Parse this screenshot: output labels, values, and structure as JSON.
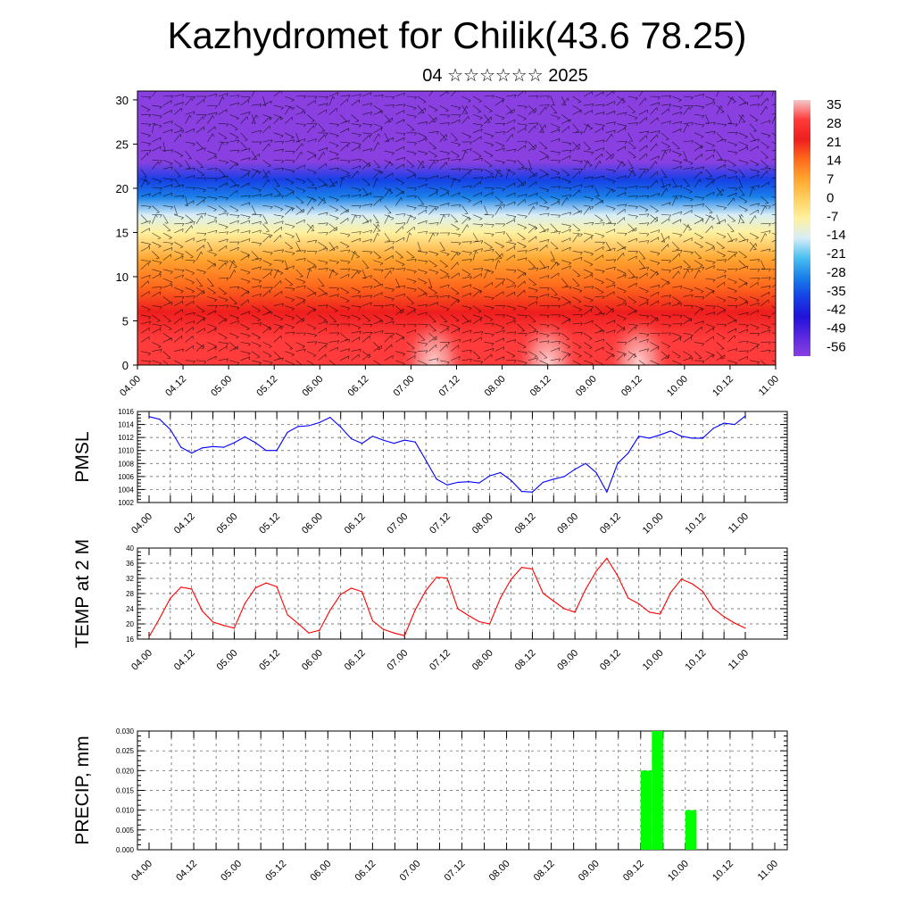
{
  "title": "Kazhydromet for Chilik(43.6 78.25)",
  "subtitle": "04 ☆☆☆☆☆☆ 2025",
  "time_ticks": [
    "04.00",
    "04.12",
    "05.00",
    "05.12",
    "06.00",
    "06.12",
    "07.00",
    "07.12",
    "08.00",
    "08.12",
    "09.00",
    "09.12",
    "10.00",
    "10.12",
    "11.00"
  ],
  "chart_data": [
    {
      "type": "heatmap",
      "description_id": "vertical-cross-section",
      "ylim": [
        0,
        31
      ],
      "yticks": [
        "0",
        "5",
        "10",
        "15",
        "20",
        "25",
        "30"
      ],
      "colorbar": {
        "labels": [
          "35",
          "28",
          "21",
          "14",
          "7",
          "0",
          "-7",
          "-14",
          "-21",
          "-28",
          "-35",
          "-42",
          "-49",
          "-56"
        ],
        "colors": [
          "#f4c8c8",
          "#ff3b3b",
          "#ee1e1e",
          "#ff6a1c",
          "#ffa530",
          "#ffd060",
          "#fff1a0",
          "#d8eef6",
          "#4cc0f0",
          "#1a80e8",
          "#1640e6",
          "#2012d8",
          "#5a28e0",
          "#8a40e0"
        ]
      },
      "profile_by_height": [
        {
          "h": 0,
          "v": 30
        },
        {
          "h": 3,
          "v": 27
        },
        {
          "h": 6,
          "v": 22
        },
        {
          "h": 9,
          "v": 14
        },
        {
          "h": 12,
          "v": 6
        },
        {
          "h": 15,
          "v": -6
        },
        {
          "h": 17,
          "v": -15
        },
        {
          "h": 19,
          "v": -26
        },
        {
          "h": 21,
          "v": -38
        },
        {
          "h": 23,
          "v": -55
        },
        {
          "h": 25,
          "v": -60
        },
        {
          "h": 27,
          "v": -58
        },
        {
          "h": 31,
          "v": -56
        }
      ]
    },
    {
      "type": "line",
      "ylabel": "PMSL",
      "ylim": [
        1002,
        1016
      ],
      "yticks": [
        "1002",
        "1004",
        "1006",
        "1008",
        "1010",
        "1012",
        "1014",
        "1016"
      ],
      "color": "#0000ff",
      "x": [
        0,
        3,
        6,
        9,
        12,
        15,
        18,
        21,
        24,
        27,
        30,
        33,
        36,
        39,
        42,
        45,
        48,
        51,
        54,
        57,
        60,
        63,
        66,
        69,
        72,
        75,
        78,
        81,
        84,
        87,
        90,
        93,
        96,
        99,
        102,
        105,
        108,
        111,
        114,
        117,
        120,
        123,
        126,
        129,
        132,
        135,
        138,
        141,
        144,
        147,
        150,
        153,
        156,
        159,
        162,
        165,
        168
      ],
      "values": [
        1015.2,
        1014.8,
        1013.2,
        1010.5,
        1009.6,
        1010.4,
        1010.6,
        1010.5,
        1011.2,
        1012.1,
        1011.2,
        1010.0,
        1010.0,
        1012.8,
        1013.7,
        1013.8,
        1014.3,
        1015.1,
        1013.6,
        1011.8,
        1011.1,
        1012.2,
        1011.6,
        1011.1,
        1011.6,
        1011.3,
        1008.5,
        1005.6,
        1004.7,
        1005.1,
        1005.2,
        1005.0,
        1006.1,
        1006.6,
        1005.4,
        1003.7,
        1003.6,
        1005.1,
        1005.6,
        1006.0,
        1007.1,
        1008.0,
        1006.6,
        1003.6,
        1008.0,
        1009.6,
        1012.2,
        1011.9,
        1012.4,
        1013.0,
        1012.2,
        1011.9,
        1011.9,
        1013.4,
        1014.2,
        1014.0,
        1015.3
      ]
    },
    {
      "type": "line",
      "ylabel": "TEMP at 2 M",
      "ylim": [
        16,
        40
      ],
      "yticks": [
        "16",
        "20",
        "24",
        "28",
        "32",
        "36",
        "40"
      ],
      "color": "#ff0000",
      "x": [
        0,
        3,
        6,
        9,
        12,
        15,
        18,
        21,
        24,
        27,
        30,
        33,
        36,
        39,
        42,
        45,
        48,
        51,
        54,
        57,
        60,
        63,
        66,
        69,
        72,
        75,
        78,
        81,
        84,
        87,
        90,
        93,
        96,
        99,
        102,
        105,
        108,
        111,
        114,
        117,
        120,
        123,
        126,
        129,
        132,
        135,
        138,
        141,
        144,
        147,
        150,
        153,
        156,
        159,
        162,
        165,
        168
      ],
      "values": [
        16.6,
        21.5,
        26.8,
        29.7,
        29.2,
        23.4,
        20.5,
        19.6,
        18.9,
        25.4,
        29.5,
        30.8,
        29.8,
        22.4,
        20.1,
        17.6,
        18.3,
        23.6,
        27.8,
        29.4,
        28.5,
        20.8,
        18.6,
        17.6,
        16.9,
        23.7,
        28.8,
        32.3,
        32.1,
        24.0,
        22.2,
        20.6,
        20.0,
        26.8,
        31.8,
        34.9,
        34.5,
        28.1,
        26.0,
        24.0,
        23.1,
        29.1,
        33.9,
        37.3,
        32.7,
        26.8,
        25.3,
        23.1,
        22.6,
        28.3,
        31.8,
        30.6,
        28.6,
        24.1,
        21.9,
        20.2,
        18.9
      ]
    },
    {
      "type": "bar",
      "ylabel": "PRECIP, mm",
      "ylim": [
        0,
        0.03
      ],
      "yticks": [
        "0.000",
        "0.005",
        "0.010",
        "0.015",
        "0.020",
        "0.025",
        "0.030"
      ],
      "color": "#00ff00",
      "bars": [
        {
          "x_start": 132,
          "x_end": 135,
          "value": 0.02
        },
        {
          "x_start": 135,
          "x_end": 138,
          "value": 0.03
        },
        {
          "x_start": 144,
          "x_end": 147,
          "value": 0.01
        }
      ]
    }
  ]
}
